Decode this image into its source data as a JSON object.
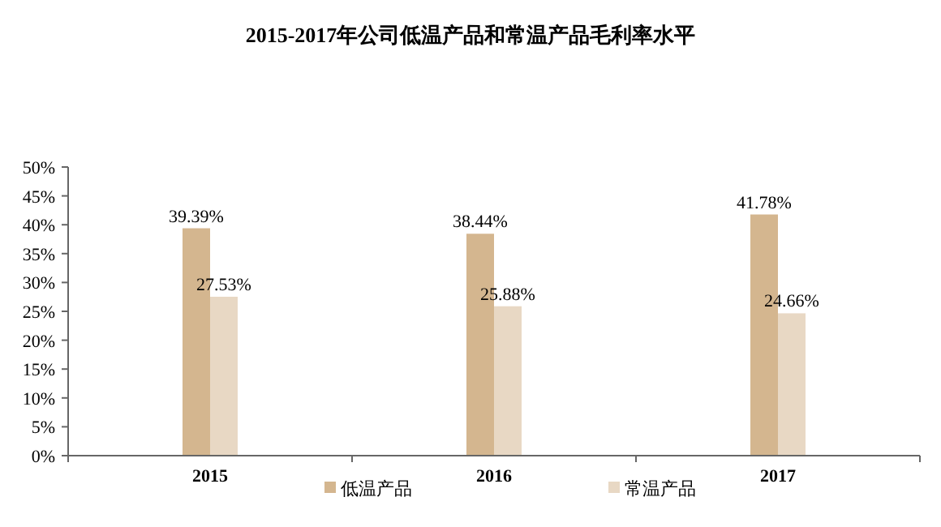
{
  "chart_data": {
    "type": "bar",
    "title": "2015-2017年公司低温产品和常温产品毛利率水平",
    "categories": [
      "2015",
      "2016",
      "2017"
    ],
    "series": [
      {
        "name": "低温产品",
        "color": "#d4b68f",
        "values": [
          39.39,
          38.44,
          41.78
        ],
        "value_labels": [
          "39.39%",
          "38.44%",
          "41.78%"
        ]
      },
      {
        "name": "常温产品",
        "color": "#e8d8c4",
        "values": [
          27.53,
          25.88,
          24.66
        ],
        "value_labels": [
          "27.53%",
          "25.88%",
          "24.66%"
        ]
      }
    ],
    "ylim": [
      0,
      50
    ],
    "yticks": [
      {
        "value": 0,
        "label": "0%"
      },
      {
        "value": 5,
        "label": "5%"
      },
      {
        "value": 10,
        "label": "10%"
      },
      {
        "value": 15,
        "label": "15%"
      },
      {
        "value": 20,
        "label": "20%"
      },
      {
        "value": 25,
        "label": "25%"
      },
      {
        "value": 30,
        "label": "30%"
      },
      {
        "value": 35,
        "label": "35%"
      },
      {
        "value": 40,
        "label": "40%"
      },
      {
        "value": 45,
        "label": "45%"
      },
      {
        "value": 50,
        "label": "50%"
      }
    ],
    "grid": false,
    "legend": "bottom"
  }
}
